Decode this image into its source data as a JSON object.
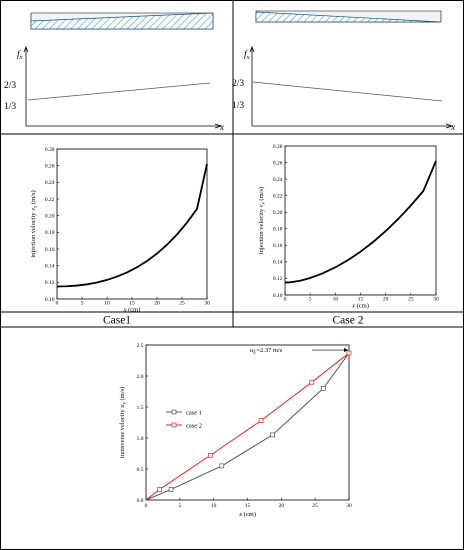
{
  "labels": {
    "f_symbol": "f",
    "f_subscript": "x",
    "x_symbol": "x",
    "two_thirds": "2/3",
    "one_third": "1/3",
    "case1": "Case1",
    "case2": "Case 2"
  },
  "colors": {
    "hatch": "#5aa6c4",
    "panel_fill": "#eef5f9",
    "case1_line": "#555555",
    "case2_line": "#e8231f",
    "curve": "#000000"
  },
  "chart_data": [
    {
      "id": "fx_case1",
      "type": "line",
      "title": "",
      "xlabel": "x",
      "ylabel": "fx",
      "yticks": [
        {
          "label": "1/3",
          "value": 0.3333
        },
        {
          "label": "2/3",
          "value": 0.6667
        }
      ],
      "ylim": [
        0,
        1
      ],
      "x": [
        0,
        1
      ],
      "values": [
        0.36,
        0.5
      ],
      "grid": false
    },
    {
      "id": "fx_case2",
      "type": "line",
      "title": "",
      "xlabel": "x",
      "ylabel": "fx",
      "yticks": [
        {
          "label": "2/3",
          "value": 0.6667
        },
        {
          "label": "1/3",
          "value": 0.3333
        }
      ],
      "ylim": [
        0,
        1
      ],
      "x": [
        0,
        1
      ],
      "values": [
        0.7,
        0.36
      ],
      "grid": false
    },
    {
      "id": "velocity_case1",
      "type": "line",
      "xlabel": "x (cm)",
      "ylabel": "injection velocity v",
      "ylabel_sub": "x",
      "ylabel_unit": " (m/s)",
      "xlim": [
        0,
        30
      ],
      "ylim": [
        0.1,
        0.28
      ],
      "xticks": [
        0,
        5,
        10,
        15,
        20,
        25,
        30
      ],
      "yticks": [
        0.1,
        0.12,
        0.14,
        0.16,
        0.18,
        0.2,
        0.22,
        0.24,
        0.26,
        0.28
      ],
      "x": [
        0,
        2,
        4,
        6,
        8,
        10,
        12,
        14,
        16,
        18,
        20,
        22,
        24,
        26,
        28,
        30
      ],
      "y": [
        0.115,
        0.1153,
        0.1161,
        0.1176,
        0.1198,
        0.1229,
        0.1269,
        0.1319,
        0.1381,
        0.1456,
        0.1545,
        0.1651,
        0.1774,
        0.1917,
        0.2081,
        0.262
      ],
      "grid": false
    },
    {
      "id": "velocity_case2",
      "type": "line",
      "xlabel": "x (cm)",
      "ylabel": "injection velocity v",
      "ylabel_sub": "x",
      "ylabel_unit": " (m/s)",
      "xlim": [
        0,
        30
      ],
      "ylim": [
        0.1,
        0.28
      ],
      "xticks": [
        0,
        5,
        10,
        15,
        20,
        25,
        30
      ],
      "yticks": [
        0.1,
        0.12,
        0.14,
        0.16,
        0.18,
        0.2,
        0.22,
        0.24,
        0.26,
        0.28
      ],
      "x": [
        0,
        1,
        3,
        5,
        7.5,
        10,
        12.5,
        15,
        17.5,
        20,
        22.5,
        25,
        27.5,
        30
      ],
      "y": [
        0.115,
        0.1153,
        0.1172,
        0.1205,
        0.1262,
        0.1334,
        0.1421,
        0.1523,
        0.164,
        0.1772,
        0.1919,
        0.2081,
        0.2258,
        0.262
      ],
      "grid": false
    },
    {
      "id": "transverse_velocity",
      "type": "line",
      "xlabel": "x (cm)",
      "ylabel": "transverse velocity u",
      "ylabel_sub": "x",
      "ylabel_unit": " (m/s)",
      "xlim": [
        0,
        30
      ],
      "ylim": [
        0,
        2.5
      ],
      "xticks": [
        0,
        5,
        10,
        15,
        20,
        25,
        30
      ],
      "yticks": [
        0.0,
        0.5,
        1.0,
        1.5,
        2.0,
        2.5
      ],
      "ytick_labels": [
        "0.0",
        "0.5",
        "1.0",
        "1.5",
        "2.0",
        "2.5"
      ],
      "legend_position": "center-left",
      "annotation": {
        "prefix": "u",
        "sub": "L",
        "text": "=2.37 m/s",
        "x": 30,
        "y": 2.37
      },
      "series": [
        {
          "name": "case 1",
          "x": [
            0,
            3.7,
            11.2,
            18.7,
            26.2,
            30
          ],
          "y": [
            0,
            0.17,
            0.55,
            1.05,
            1.8,
            2.37
          ],
          "markers": [
            3.7,
            11.2,
            18.7,
            26.2
          ]
        },
        {
          "name": "case 2",
          "x": [
            0,
            2,
            9.5,
            17,
            24.5,
            30
          ],
          "y": [
            0,
            0.17,
            0.72,
            1.28,
            1.9,
            2.37
          ],
          "markers": [
            2,
            9.5,
            17,
            24.5,
            30
          ]
        }
      ],
      "grid": false
    }
  ]
}
